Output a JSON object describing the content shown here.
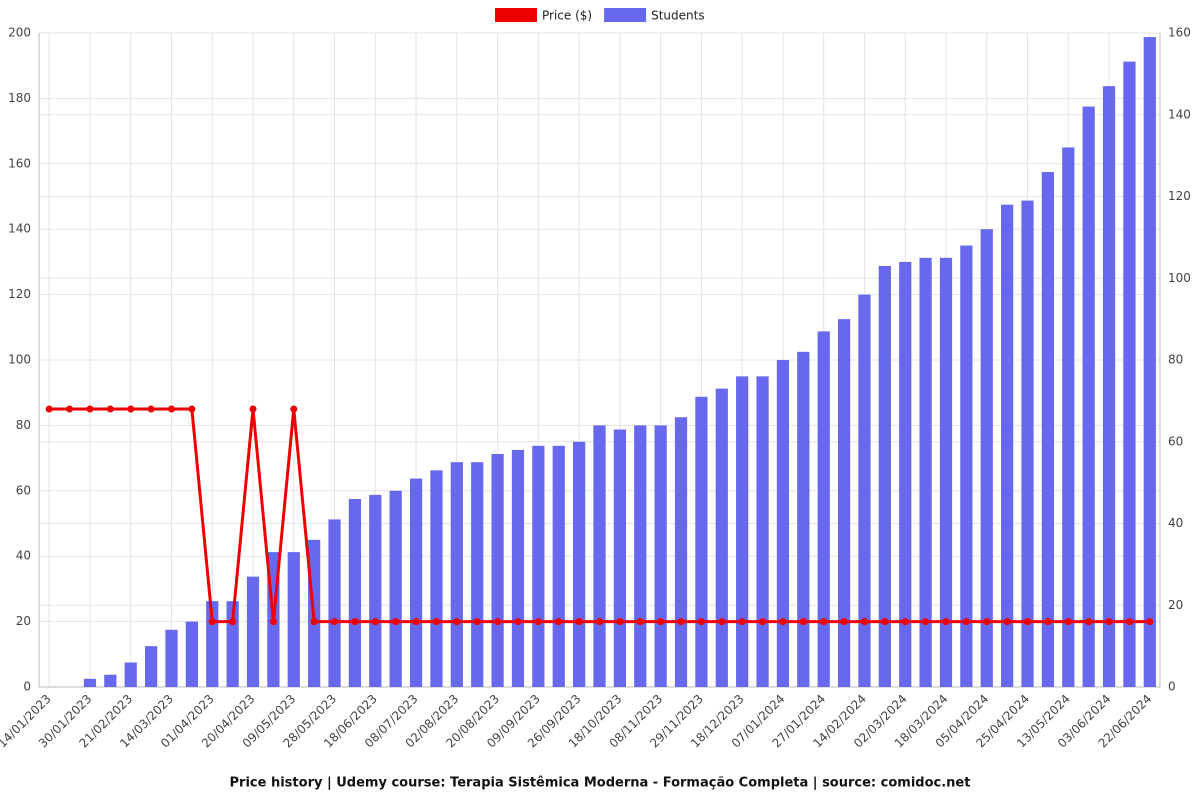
{
  "chart_data": {
    "type": "bar",
    "title": "Price history | Udemy course: Terapia Sistêmica Moderna - Formação Completa | source: comidoc.net",
    "categories": [
      "14/01/2023",
      null,
      "30/01/2023",
      null,
      "21/02/2023",
      null,
      "14/03/2023",
      null,
      "01/04/2023",
      null,
      "20/04/2023",
      null,
      "09/05/2023",
      null,
      "28/05/2023",
      null,
      "18/06/2023",
      null,
      "08/07/2023",
      null,
      "02/08/2023",
      null,
      "20/08/2023",
      null,
      "09/09/2023",
      null,
      "26/09/2023",
      null,
      "18/10/2023",
      null,
      "08/11/2023",
      null,
      "29/11/2023",
      null,
      "18/12/2023",
      null,
      "07/01/2024",
      null,
      "27/01/2024",
      null,
      "14/02/2024",
      null,
      "02/03/2024",
      null,
      "18/03/2024",
      null,
      "05/04/2024",
      null,
      "25/04/2024",
      null,
      "13/05/2024",
      null,
      "03/06/2024",
      null,
      "22/06/2024"
    ],
    "series": [
      {
        "name": "Price ($)",
        "type": "line",
        "color": "#ee0000",
        "axis": "y",
        "values": [
          85,
          85,
          85,
          85,
          85,
          85,
          85,
          85,
          20,
          20,
          85,
          20,
          85,
          20,
          20,
          20,
          20,
          20,
          20,
          20,
          20,
          20,
          20,
          20,
          20,
          20,
          20,
          20,
          20,
          20,
          20,
          20,
          20,
          20,
          20,
          20,
          20,
          20,
          20,
          20,
          20,
          20,
          20,
          20,
          20,
          20,
          20,
          20,
          20,
          20,
          20,
          20,
          20,
          20,
          20
        ]
      },
      {
        "name": "Students",
        "type": "bar",
        "color": "#6868ee",
        "axis": "y2",
        "values": [
          0,
          0,
          2,
          3,
          6,
          10,
          14,
          16,
          21,
          21,
          27,
          33,
          33,
          36,
          41,
          46,
          47,
          48,
          51,
          53,
          55,
          55,
          57,
          58,
          59,
          59,
          60,
          64,
          63,
          64,
          64,
          66,
          71,
          73,
          76,
          76,
          80,
          82,
          87,
          90,
          96,
          103,
          104,
          105,
          105,
          108,
          112,
          118,
          119,
          126,
          132,
          142,
          147,
          153,
          159
        ]
      }
    ],
    "ylim": [
      0,
      200
    ],
    "yticks": [
      0,
      20,
      40,
      60,
      80,
      100,
      120,
      140,
      160,
      180,
      200
    ],
    "y2lim": [
      0,
      160
    ],
    "y2ticks": [
      0,
      20,
      40,
      60,
      80,
      100,
      120,
      140,
      160
    ],
    "grid": true,
    "legend": "top"
  }
}
